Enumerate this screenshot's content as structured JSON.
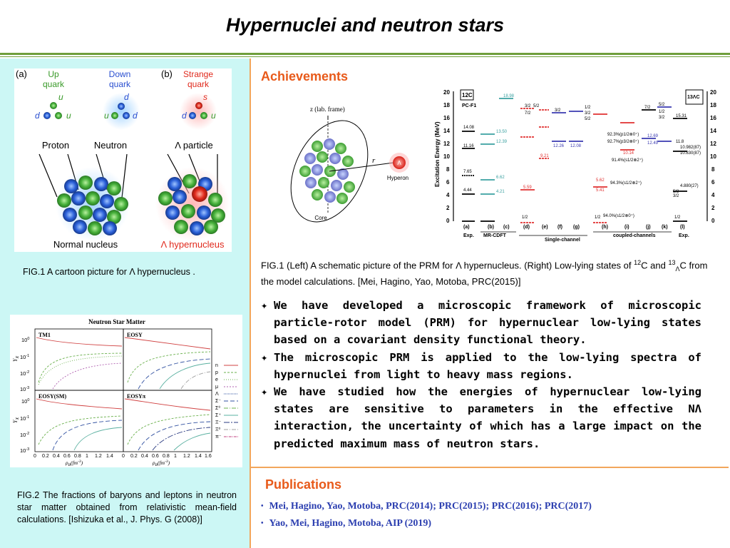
{
  "slide": {
    "title": "Hypernuclei and neutron stars"
  },
  "colors": {
    "accent_orange": "#e85a1a",
    "green_line": "#6f9e3c",
    "panel_cyan": "#ccf7f5",
    "pub_blue": "#2c3fb0"
  },
  "fig_quark": {
    "panel_a": "(a)",
    "panel_b": "(b)",
    "up_quark": [
      "Up",
      "quark"
    ],
    "down_quark": [
      "Down",
      "quark"
    ],
    "strange_quark": [
      "Strange",
      "quark"
    ],
    "u": "u",
    "d": "d",
    "s": "s",
    "proton": "Proton",
    "neutron": "Neutron",
    "lambda_particle": "Λ particle",
    "normal_nucleus": "Normal nucleus",
    "lambda_hypernucleus": "Λ hypernucleus"
  },
  "left_captions": {
    "fig1": "FIG.1 A cartoon picture for Λ hypernucleus .",
    "fig2": "FIG.2 The fractions of baryons and leptons in neutron star matter obtained from relativistic mean-field calculations. [Ishizuka et al., J. Phys. G (2008)]"
  },
  "fig_neutron_star": {
    "title": "Neutron Star Matter",
    "panels": [
      "TM1",
      "EOSY",
      "EOSY(SM)",
      "EOSYπ"
    ],
    "ylabel": "Y",
    "ylabel_sub": "X",
    "yticks": [
      "10",
      "10",
      "10",
      "10"
    ],
    "ytick_exps": [
      "0",
      "-1",
      "-2",
      "-3"
    ],
    "xticks": [
      "0",
      "0.2",
      "0.4",
      "0.6",
      "0.8",
      "1",
      "1.2",
      "1.4",
      "1.6"
    ],
    "xlabel": "ρ",
    "xlabel_sub": "B",
    "xlabel_unit": "(fm",
    "xlabel_unit_exp": "-3",
    "xlabel_close": ")",
    "legend": [
      "n",
      "p",
      "e",
      "μ",
      "Λ",
      "Σ⁻",
      "Σ⁰",
      "Σ⁺",
      "Ξ⁻",
      "Ξ⁰",
      "π⁻"
    ]
  },
  "achievements": {
    "heading": "Achievements"
  },
  "fig_prm": {
    "axis_label": "z (lab. frame)",
    "r_label": "r",
    "lambda": "Λ",
    "hyperon": "Hyperon",
    "core": "Core"
  },
  "fig_spectrum": {
    "ylabel": "Excitation Energy (MeV)",
    "yticks": [
      "20",
      "18",
      "16",
      "14",
      "12",
      "10",
      "8",
      "6",
      "4",
      "2",
      "0"
    ],
    "nucleus_left": "12C",
    "nucleus_right": "13ΛC",
    "pc_f1": "PC-F1",
    "columns": [
      "(a)",
      "(b)",
      "(c)",
      "(d)",
      "(e)",
      "(f)",
      "(g)",
      "(h)",
      "(i)",
      "(j)",
      "(k)",
      "(l)"
    ],
    "group_exp_left": "Exp.",
    "group_mrcdft": "MR-CDFT",
    "group_single": "Single-channel",
    "group_coupled": "coupled-channels",
    "group_exp_right": "Exp.",
    "levels_left": [
      "14.08",
      "13.50",
      "12.39",
      "11.16",
      "7.65",
      "6.62",
      "4.44",
      "4.21",
      "18.98"
    ],
    "levels_right": [
      "15.31",
      "12.69",
      "12.49",
      "11.8",
      "10.982(87)",
      "10.830(87)",
      "4.880(27)"
    ],
    "percent_labels": [
      "92.3%(p1/2⊗0⁺)",
      "92.7%(p3/2⊗0⁺)",
      "91.4%(s1/2⊗2⁺)",
      "94.3%(s1/2⊗2⁺)",
      "94.0%(s1/2⊗0⁺)"
    ],
    "mid_values": [
      "12.26",
      "12.08",
      "9.21",
      "10.14",
      "5.59",
      "5.62",
      "5.41"
    ],
    "spins": [
      "1/2",
      "3/2",
      "5/2",
      "7/2"
    ]
  },
  "fig1_right_caption": {
    "text_a": "FIG.1 (Left) A schematic picture of the PRM for Λ hypernucleus. (Right) Low-lying states of ",
    "sup1": "12",
    "text_b": "C and ",
    "sup2": "13",
    "sub2": "Λ",
    "text_c": "C from the model calculations. [Mei, Hagino, Yao, Motoba, PRC(2015)]"
  },
  "bullets": {
    "mark": "✦",
    "items": [
      "We have developed a microscopic framework of microscopic particle-rotor model (PRM) for hypernuclear low-lying states based on a covariant density functional theory.",
      "The microscopic PRM is applied to the low-lying spectra of hypernuclei from light to heavy mass regions.",
      "We have studied how the energies of hypernuclear low-lying states are sensitive to parameters in the effective NΛ interaction, the uncertainty of which has a large impact on the predicted maximum mass of neutron stars."
    ]
  },
  "publications": {
    "heading": "Publications",
    "dot": "•",
    "items": [
      "Mei, Hagino, Yao, Motoba, PRC(2014); PRC(2015); PRC(2016); PRC(2017)",
      "Yao, Mei, Hagino, Motoba, AIP (2019)"
    ]
  }
}
